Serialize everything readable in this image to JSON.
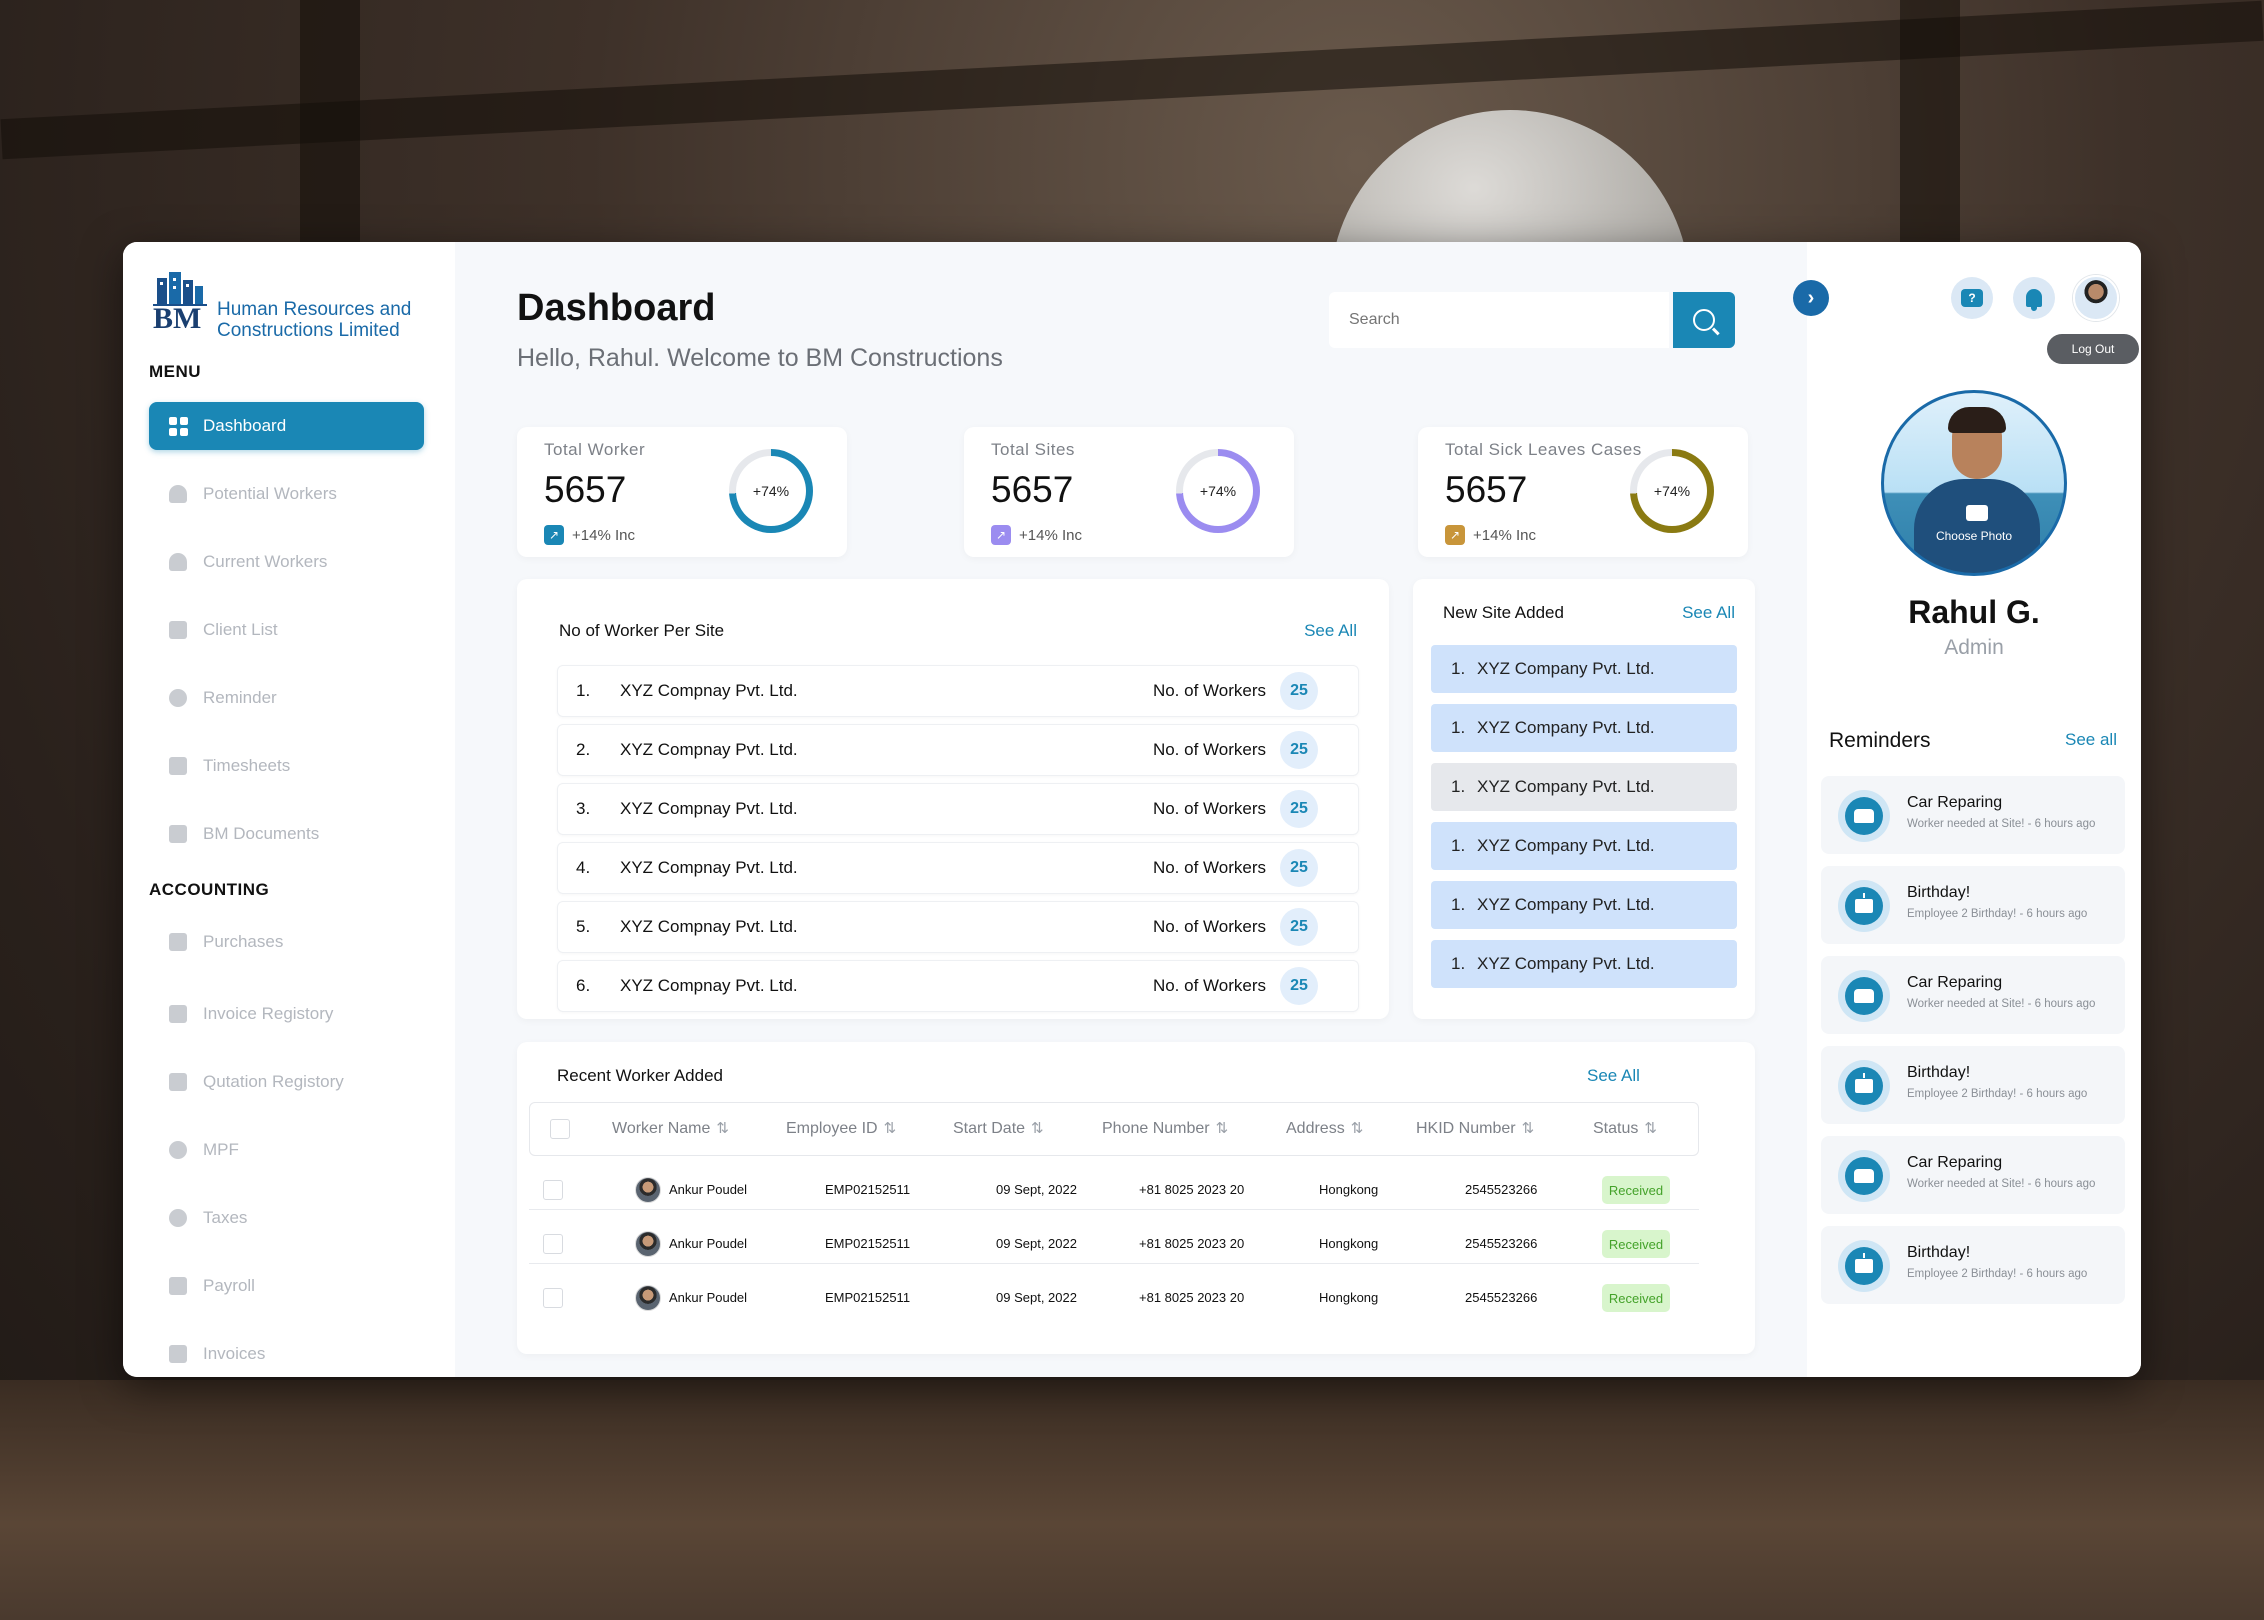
{
  "brand": {
    "logo_letters": "BM",
    "name_line1": "Human Resources and",
    "name_line2": "Constructions Limited"
  },
  "sidebar": {
    "menu_label": "MENU",
    "accounting_label": "ACCOUNTING",
    "menu_items": [
      {
        "label": "Dashboard",
        "icon": "grid-icon",
        "active": true
      },
      {
        "label": "Potential Workers",
        "icon": "person-icon"
      },
      {
        "label": "Current Workers",
        "icon": "person-icon"
      },
      {
        "label": "Client List",
        "icon": "id-card-icon"
      },
      {
        "label": "Reminder",
        "icon": "clock-icon"
      },
      {
        "label": "Timesheets",
        "icon": "calendar-icon"
      },
      {
        "label": "BM Documents",
        "icon": "document-icon"
      }
    ],
    "accounting_items": [
      {
        "label": "Purchases",
        "icon": "basket-icon"
      },
      {
        "label": "Invoice Registory",
        "icon": "invoice-icon"
      },
      {
        "label": "Qutation Registory",
        "icon": "quotation-icon"
      },
      {
        "label": "MPF",
        "icon": "group-icon"
      },
      {
        "label": "Taxes",
        "icon": "coin-icon"
      },
      {
        "label": "Payroll",
        "icon": "payroll-icon"
      },
      {
        "label": "Invoices",
        "icon": "invoice-icon"
      }
    ]
  },
  "header": {
    "title": "Dashboard",
    "greeting": "Hello, Rahul. Welcome to BM Constructions",
    "search_placeholder": "Search"
  },
  "stats": [
    {
      "label": "Total Worker",
      "value": "5657",
      "ring_label": "+74%",
      "ring_percent": 74,
      "increase": "+14% Inc",
      "color": "#1a87b5"
    },
    {
      "label": "Total Sites",
      "value": "5657",
      "ring_label": "+74%",
      "ring_percent": 74,
      "increase": "+14% Inc",
      "color": "#9b8cf0"
    },
    {
      "label": "Total Sick Leaves Cases",
      "value": "5657",
      "ring_label": "+74%",
      "ring_percent": 74,
      "increase": "+14% Inc",
      "color": "#8a7a12"
    }
  ],
  "workers_per_site": {
    "title": "No of Worker Per Site",
    "see_all": "See All",
    "workers_label": "No. of Workers",
    "rows": [
      {
        "num": "1.",
        "name": "XYZ Compnay Pvt. Ltd.",
        "count": "25"
      },
      {
        "num": "2.",
        "name": "XYZ Compnay Pvt. Ltd.",
        "count": "25"
      },
      {
        "num": "3.",
        "name": "XYZ Compnay Pvt. Ltd.",
        "count": "25"
      },
      {
        "num": "4.",
        "name": "XYZ Compnay Pvt. Ltd.",
        "count": "25"
      },
      {
        "num": "5.",
        "name": "XYZ Compnay Pvt. Ltd.",
        "count": "25"
      },
      {
        "num": "6.",
        "name": "XYZ Compnay Pvt. Ltd.",
        "count": "25"
      }
    ]
  },
  "new_sites": {
    "title": "New Site Added",
    "see_all": "See All",
    "rows": [
      {
        "num": "1.",
        "name": "XYZ Company Pvt. Ltd."
      },
      {
        "num": "1.",
        "name": "XYZ Company Pvt. Ltd."
      },
      {
        "num": "1.",
        "name": "XYZ Company Pvt. Ltd."
      },
      {
        "num": "1.",
        "name": "XYZ Company Pvt. Ltd."
      },
      {
        "num": "1.",
        "name": "XYZ Company Pvt. Ltd."
      },
      {
        "num": "1.",
        "name": "XYZ Company Pvt. Ltd."
      }
    ]
  },
  "recent_workers": {
    "title": "Recent Worker Added",
    "see_all": "See All",
    "sort_glyph": "⇅",
    "columns": [
      "Worker Name",
      "Employee ID",
      "Start Date",
      "Phone Number",
      "Address",
      "HKID Number",
      "Status"
    ],
    "rows": [
      {
        "name": "Ankur Poudel",
        "id": "EMP02152511",
        "date": "09 Sept, 2022",
        "phone": "+81 8025 2023 20",
        "address": "Hongkong",
        "hkid": "2545523266",
        "status": "Received"
      },
      {
        "name": "Ankur Poudel",
        "id": "EMP02152511",
        "date": "09 Sept, 2022",
        "phone": "+81 8025 2023 20",
        "address": "Hongkong",
        "hkid": "2545523266",
        "status": "Received"
      },
      {
        "name": "Ankur Poudel",
        "id": "EMP02152511",
        "date": "09 Sept, 2022",
        "phone": "+81 8025 2023 20",
        "address": "Hongkong",
        "hkid": "2545523266",
        "status": "Received"
      }
    ]
  },
  "right_panel": {
    "expand_glyph": "›",
    "help_glyph": "?",
    "logout_label": "Log Out",
    "choose_photo": "Choose Photo",
    "user_name": "Rahul G.",
    "user_role": "Admin",
    "reminders_title": "Reminders",
    "reminders_see_all": "See all",
    "reminders": [
      {
        "title": "Car Reparing",
        "subtitle": "Worker needed at Site! - 6 hours ago",
        "icon": "car-icon"
      },
      {
        "title": "Birthday!",
        "subtitle": "Employee 2 Birthday! - 6 hours ago",
        "icon": "cake-icon"
      },
      {
        "title": "Car Reparing",
        "subtitle": "Worker needed at Site! - 6 hours ago",
        "icon": "car-icon"
      },
      {
        "title": "Birthday!",
        "subtitle": "Employee 2 Birthday! - 6 hours ago",
        "icon": "cake-icon"
      },
      {
        "title": "Car Reparing",
        "subtitle": "Worker needed at Site! - 6 hours ago",
        "icon": "car-icon"
      },
      {
        "title": "Birthday!",
        "subtitle": "Employee 2 Birthday! - 6 hours ago",
        "icon": "cake-icon"
      }
    ]
  }
}
